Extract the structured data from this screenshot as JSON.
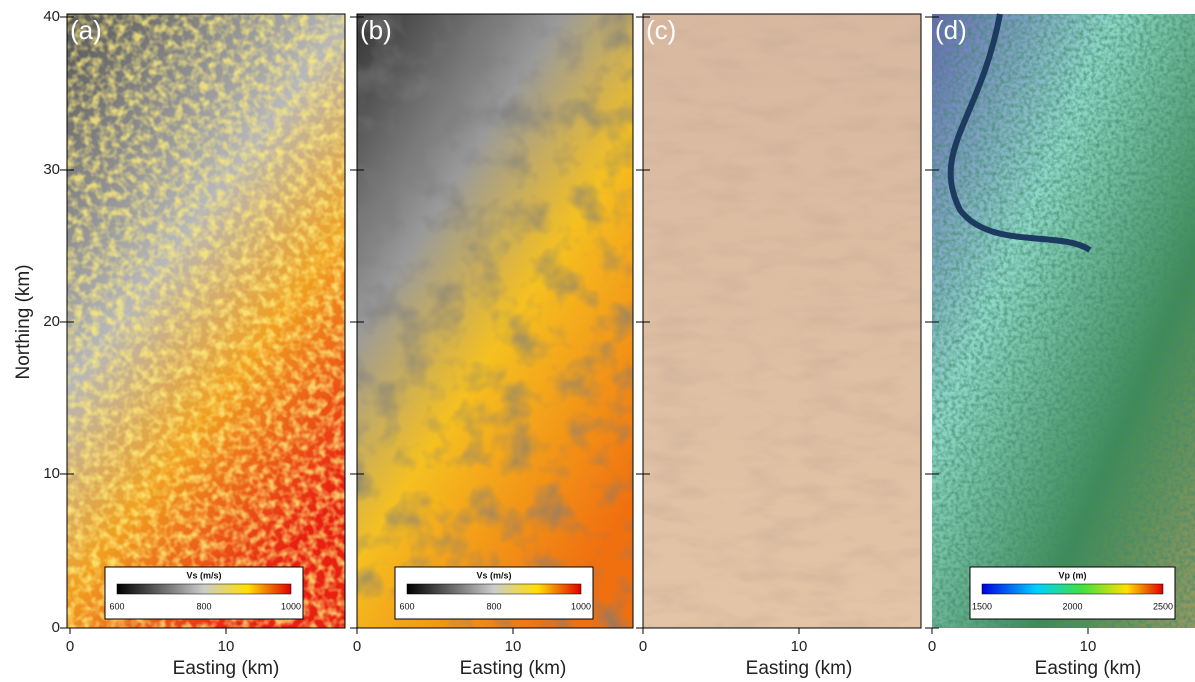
{
  "y_axis": {
    "label": "Northing (km)",
    "ticks": [
      "0",
      "10",
      "20",
      "30",
      "40"
    ]
  },
  "panels": [
    {
      "label": "(a)",
      "x_axis": {
        "label": "Easting (km)",
        "ticks": [
          "0",
          "10"
        ]
      },
      "colorbar": {
        "title": "Vs (m/s)",
        "ticks": [
          "600",
          "800",
          "1000"
        ]
      }
    },
    {
      "label": "(b)",
      "x_axis": {
        "label": "Easting (km)",
        "ticks": [
          "0",
          "10"
        ]
      },
      "colorbar": {
        "title": "Vs (m/s)",
        "ticks": [
          "600",
          "800",
          "1000"
        ]
      }
    },
    {
      "label": "(c)",
      "x_axis": {
        "label": "Easting (km)",
        "ticks": [
          "0",
          "10"
        ]
      }
    },
    {
      "label": "(d)",
      "x_axis": {
        "label": "Easting (km)",
        "ticks": [
          "0",
          "10"
        ]
      },
      "colorbar": {
        "title": "Vp (m)",
        "ticks": [
          "1500",
          "2000",
          "2500"
        ]
      }
    }
  ]
}
